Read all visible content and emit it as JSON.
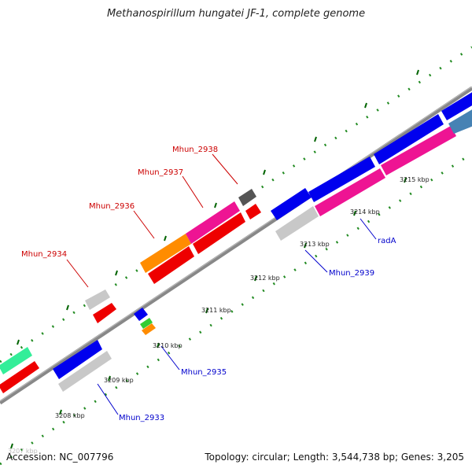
{
  "title": "Methanospirillum hungatei JF-1, complete genome",
  "footer": {
    "accession": "Accession: NC_007796",
    "summary": "Topology: circular; Length: 3,544,738 bp; Genes: 3,205"
  },
  "ticks": [
    {
      "label": "3207 kbp"
    },
    {
      "label": "3208 kbp"
    },
    {
      "label": "3209 kbp"
    },
    {
      "label": "3210 kbp"
    },
    {
      "label": "3211 kbp"
    },
    {
      "label": "3212 kbp"
    },
    {
      "label": "3213 kbp"
    },
    {
      "label": "3214 kbp"
    },
    {
      "label": "3215 kbp"
    }
  ],
  "gene_labels": [
    {
      "name": "Mhun_2938",
      "color": "#cc0000"
    },
    {
      "name": "Mhun_2937",
      "color": "#cc0000"
    },
    {
      "name": "Mhun_2936",
      "color": "#cc0000"
    },
    {
      "name": "Mhun_2934",
      "color": "#cc0000"
    },
    {
      "name": "Mhun_2939",
      "color": "#0000cc"
    },
    {
      "name": "radA",
      "color": "#0000cc"
    },
    {
      "name": "Mhun_2935",
      "color": "#0000cc"
    },
    {
      "name": "Mhun_2933",
      "color": "#0000cc"
    }
  ],
  "colors": {
    "backbone": "#888888",
    "tick": "#006400",
    "gc_dots": "#228B22",
    "forward_cds": "#0000ee",
    "reverse_cds": "#ee0000",
    "pink_feature": "#ee1493",
    "orange_feature": "#ff8c00",
    "gray_feature": "#c8c8c8",
    "dark_gray_feature": "#555555",
    "green_feature": "#33cc33",
    "teal_feature": "#33ee99",
    "steel_feature": "#4682b4"
  }
}
